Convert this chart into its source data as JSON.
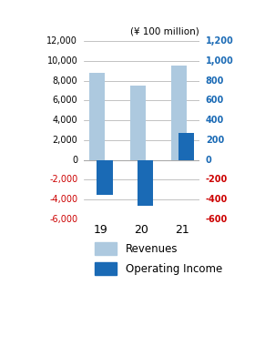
{
  "categories": [
    "19",
    "20",
    "21"
  ],
  "revenues": [
    8800,
    7500,
    9500
  ],
  "operating_income": [
    -3500,
    -4600,
    2700
  ],
  "revenue_color": "#adc9df",
  "income_color": "#1a6ab5",
  "left_ylim": [
    -6000,
    12000
  ],
  "right_ylim": [
    -600,
    1200
  ],
  "left_yticks": [
    -6000,
    -4000,
    -2000,
    0,
    2000,
    4000,
    6000,
    8000,
    10000,
    12000
  ],
  "right_yticks": [
    -600,
    -400,
    -200,
    0,
    200,
    400,
    600,
    800,
    1000,
    1200
  ],
  "left_tick_labels": [
    "-6,000",
    "-4,000",
    "-2,000",
    "0",
    "2,000",
    "4,000",
    "6,000",
    "8,000",
    "10,000",
    "12,000"
  ],
  "right_tick_labels": [
    "-600",
    "-400",
    "-200",
    "0",
    "200",
    "400",
    "600",
    "800",
    "1,000",
    "1,200"
  ],
  "unit_label": "(¥ 100 million)",
  "legend_labels": [
    "Revenues",
    "Operating Income"
  ],
  "grid_color": "#aaaaaa",
  "negative_tick_color": "#cc0000",
  "positive_tick_color_left": "#000000",
  "positive_tick_color_right": "#1a6ab5",
  "bar_width": 0.38,
  "figsize": [
    2.8,
    3.8
  ],
  "dpi": 100
}
